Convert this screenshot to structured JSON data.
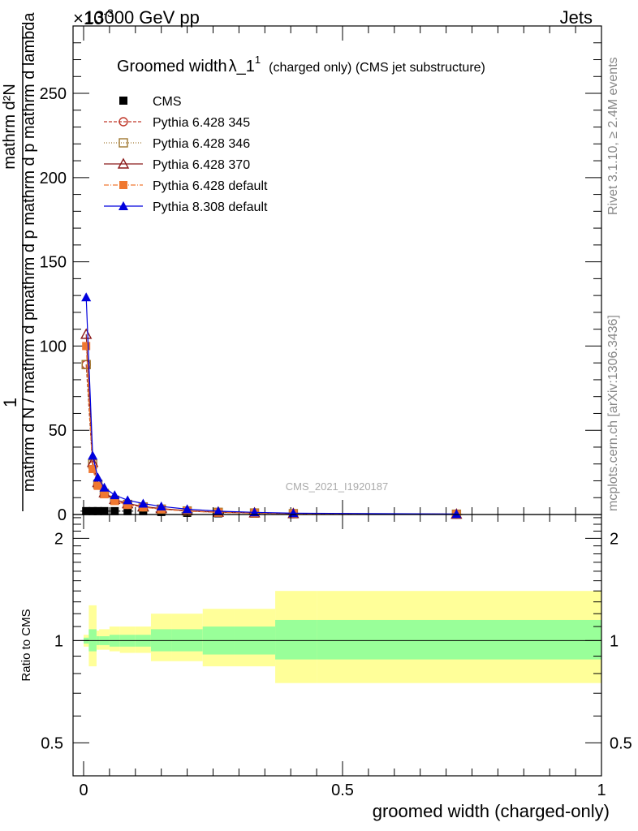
{
  "header": {
    "energy_label": "13000 GeV pp",
    "process_label": "Jets",
    "exponent_label": "×10",
    "exponent_power": "-3"
  },
  "side_labels": {
    "rivet": "Rivet 3.1.10, ≥ 2.4M events",
    "mcplots": "mcplots.cern.ch [arXiv:1306.3436]"
  },
  "watermark": "CMS_2021_I1920187",
  "chart_data": [
    {
      "type": "line",
      "title": "Groomed width λ_1¹ (charged only) (CMS jet substructure)",
      "title_main": "Groomed width",
      "title_symbol": "λ_1",
      "title_sup": "1",
      "title_rest": "(charged only) (CMS jet substructure)",
      "ylabel": "1 / (mathrm d N / mathrm d p_T) · mathrm d²N / (mathrm d p_T mathrm d lambda)",
      "ylabel_numerator_1": "1",
      "ylabel_denominator_1": "mathrm d N / mathrm d p",
      "ylabel_numerator_2": "mathrm d²N",
      "ylabel_denominator_2": "mathrm d p  mathrm d p  mathrm d lambda",
      "xlim": [
        0,
        1
      ],
      "ylim": [
        0,
        0.29
      ],
      "yticks": [
        0,
        50,
        100,
        150,
        200,
        250
      ],
      "ytick_scale": 0.001,
      "legend_position": "top-left",
      "x": [
        0.005,
        0.0175,
        0.0275,
        0.04,
        0.06,
        0.085,
        0.115,
        0.15,
        0.2,
        0.26,
        0.33,
        0.405,
        0.72
      ],
      "series": [
        {
          "name": "CMS",
          "color": "#000000",
          "marker": "square-filled",
          "values": [
            0.002,
            0.002,
            0.002,
            0.002,
            0.002,
            0.002,
            0.002,
            0.0015,
            0.001,
            0.0007,
            0.0005,
            0.0003,
            0.0001
          ]
        },
        {
          "name": "Pythia 6.428 345",
          "color": "#c0392b",
          "dash": "4,2",
          "marker": "circle-open",
          "values": [
            0.089,
            0.029,
            0.018,
            0.0125,
            0.0085,
            0.006,
            0.0045,
            0.0032,
            0.0021,
            0.0013,
            0.0009,
            0.0005,
            0.0002
          ]
        },
        {
          "name": "Pythia 6.428 346",
          "color": "#a07830",
          "dash": "1,2",
          "marker": "square-open",
          "values": [
            0.089,
            0.03,
            0.018,
            0.0125,
            0.0085,
            0.006,
            0.0045,
            0.0032,
            0.0021,
            0.0013,
            0.0009,
            0.0005,
            0.0002
          ]
        },
        {
          "name": "Pythia 6.428 370",
          "color": "#8b1a1a",
          "dash": "",
          "marker": "triangle-open",
          "values": [
            0.107,
            0.031,
            0.019,
            0.013,
            0.009,
            0.0065,
            0.0048,
            0.0035,
            0.0023,
            0.0014,
            0.001,
            0.0006,
            0.0002
          ]
        },
        {
          "name": "Pythia 6.428 default",
          "color": "#f07830",
          "dash": "6,2,1,2",
          "marker": "square-filled",
          "values": [
            0.1,
            0.027,
            0.017,
            0.012,
            0.008,
            0.0058,
            0.0043,
            0.0031,
            0.002,
            0.0012,
            0.0008,
            0.0005,
            0.0002
          ]
        },
        {
          "name": "Pythia 8.308 default",
          "color": "#0000dd",
          "dash": "",
          "marker": "triangle-filled",
          "values": [
            0.129,
            0.035,
            0.022,
            0.016,
            0.0115,
            0.0085,
            0.0065,
            0.0048,
            0.0032,
            0.002,
            0.0013,
            0.0008,
            0.0003
          ]
        }
      ]
    },
    {
      "type": "area",
      "ylabel": "Ratio to CMS",
      "xlabel": "groomed width (charged-only)",
      "xlim": [
        0,
        1
      ],
      "xticks": [
        0,
        0.5,
        1
      ],
      "xticklabels": [
        "0",
        "0.5",
        "1"
      ],
      "ylim": [
        0.4,
        2.35
      ],
      "ytick_scale": "log",
      "yticks": [
        0.5,
        1,
        2
      ],
      "yticklabels": [
        "0.5",
        "1",
        "2"
      ],
      "reference_line": 1,
      "bins": [
        0,
        0.01,
        0.025,
        0.03,
        0.05,
        0.07,
        0.1,
        0.13,
        0.17,
        0.23,
        0.29,
        0.37,
        0.45,
        1.0
      ],
      "band_inner": {
        "color": "#99ff99",
        "low": [
          0.98,
          0.93,
          0.97,
          0.97,
          0.96,
          0.96,
          0.96,
          0.93,
          0.93,
          0.91,
          0.91,
          0.88,
          0.88
        ],
        "high": [
          1.02,
          1.08,
          1.03,
          1.03,
          1.04,
          1.04,
          1.04,
          1.08,
          1.08,
          1.1,
          1.1,
          1.15,
          1.15
        ]
      },
      "band_outer": {
        "color": "#ffff99",
        "low": [
          0.96,
          0.84,
          0.94,
          0.94,
          0.93,
          0.92,
          0.92,
          0.87,
          0.87,
          0.84,
          0.84,
          0.75,
          0.75
        ]
      },
      "band_outer_high": [
        1.04,
        1.27,
        1.07,
        1.08,
        1.1,
        1.1,
        1.1,
        1.2,
        1.2,
        1.24,
        1.24,
        1.4,
        1.4
      ]
    }
  ]
}
